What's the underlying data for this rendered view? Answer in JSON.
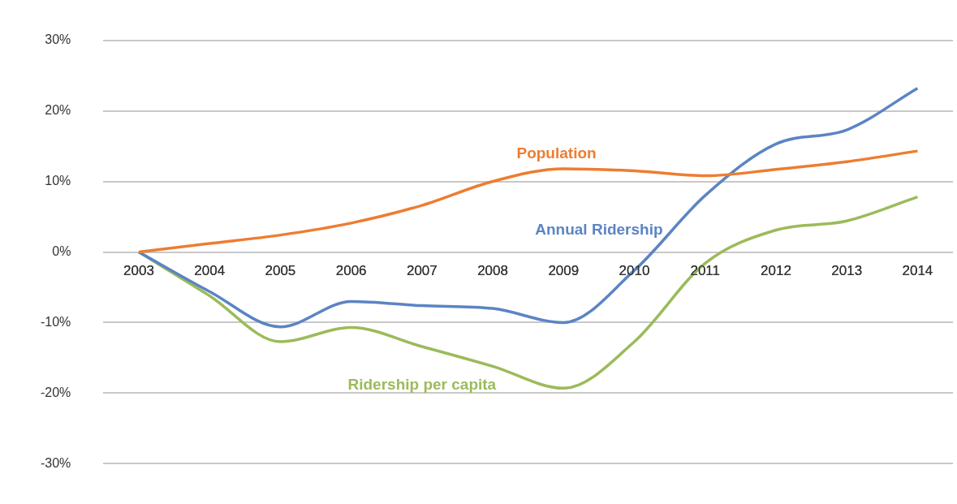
{
  "chart_data": {
    "type": "line",
    "categories": [
      "2003",
      "2004",
      "2005",
      "2006",
      "2007",
      "2008",
      "2009",
      "2010",
      "2011",
      "2012",
      "2013",
      "2014"
    ],
    "series": [
      {
        "name": "Population",
        "color": "#ed7d31",
        "values": [
          0,
          1.2,
          2.4,
          4.1,
          6.6,
          10,
          11.8,
          11.5,
          10.8,
          11.7,
          12.8,
          14.3
        ]
      },
      {
        "name": "Annual Ridership",
        "color": "#5b84c4",
        "values": [
          0,
          -5.6,
          -10.6,
          -7,
          -7.6,
          -8,
          -10,
          -2.6,
          8,
          15.3,
          17.3,
          23.2
        ]
      },
      {
        "name": "Ridership per capita",
        "color": "#9bbb59",
        "values": [
          0,
          -6.2,
          -12.7,
          -10.7,
          -13.4,
          -16.2,
          -19.3,
          -12.7,
          -1.6,
          3.1,
          4.4,
          7.8
        ]
      }
    ],
    "ylim": [
      -30,
      30
    ],
    "yticks": [
      {
        "value": -30,
        "label": "-30%"
      },
      {
        "value": -20,
        "label": "-20%"
      },
      {
        "value": -10,
        "label": "-10%"
      },
      {
        "value": 0,
        "label": "0%"
      },
      {
        "value": 10,
        "label": "10%"
      },
      {
        "value": 20,
        "label": "20%"
      },
      {
        "value": 30,
        "label": "30%"
      }
    ],
    "grid": "y",
    "legend": false,
    "marker": "none",
    "line_style": "solid"
  }
}
